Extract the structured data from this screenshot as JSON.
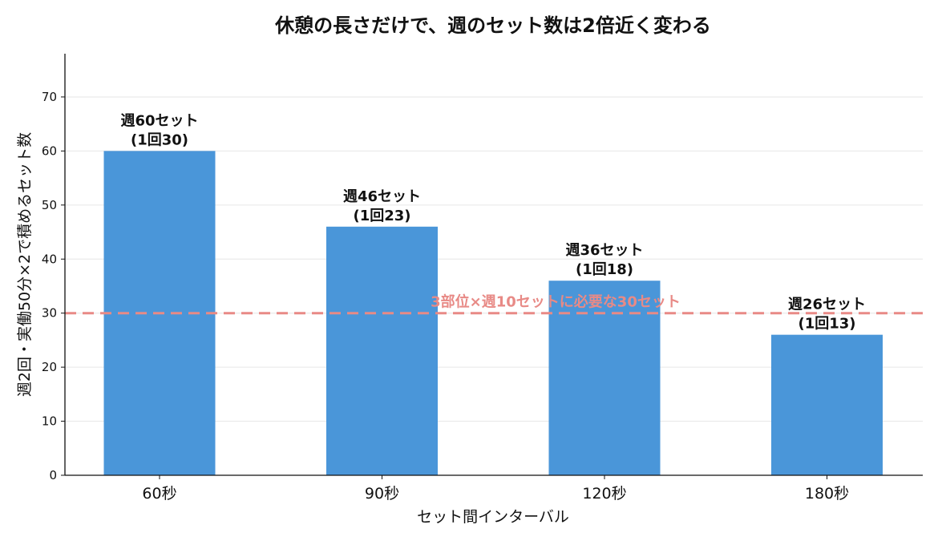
{
  "chart_data": {
    "type": "bar",
    "title": "休憩の長さだけで、週のセット数は2倍近く変わる",
    "xlabel": "セット間インターバル",
    "ylabel": "週2回・実働50分×2で積めるセット数",
    "categories": [
      "60秒",
      "90秒",
      "120秒",
      "180秒"
    ],
    "values": [
      60,
      46,
      36,
      26
    ],
    "data_labels": [
      [
        "週60セット",
        "(1回30)"
      ],
      [
        "週46セット",
        "(1回23)"
      ],
      [
        "週36セット",
        "(1回18)"
      ],
      [
        "週26セット",
        "(1回13)"
      ]
    ],
    "ylim": [
      0,
      78
    ],
    "yticks": [
      0,
      10,
      20,
      30,
      40,
      50,
      60,
      70
    ],
    "grid": "horizontal",
    "reference_line": {
      "value": 30,
      "label": "3部位×週10セットに必要な30セット",
      "style": "dashed"
    },
    "colors": {
      "bar": "#4a96d9",
      "reference": "#e88a86",
      "grid": "#e6e6e6",
      "axis": "#111111"
    }
  }
}
